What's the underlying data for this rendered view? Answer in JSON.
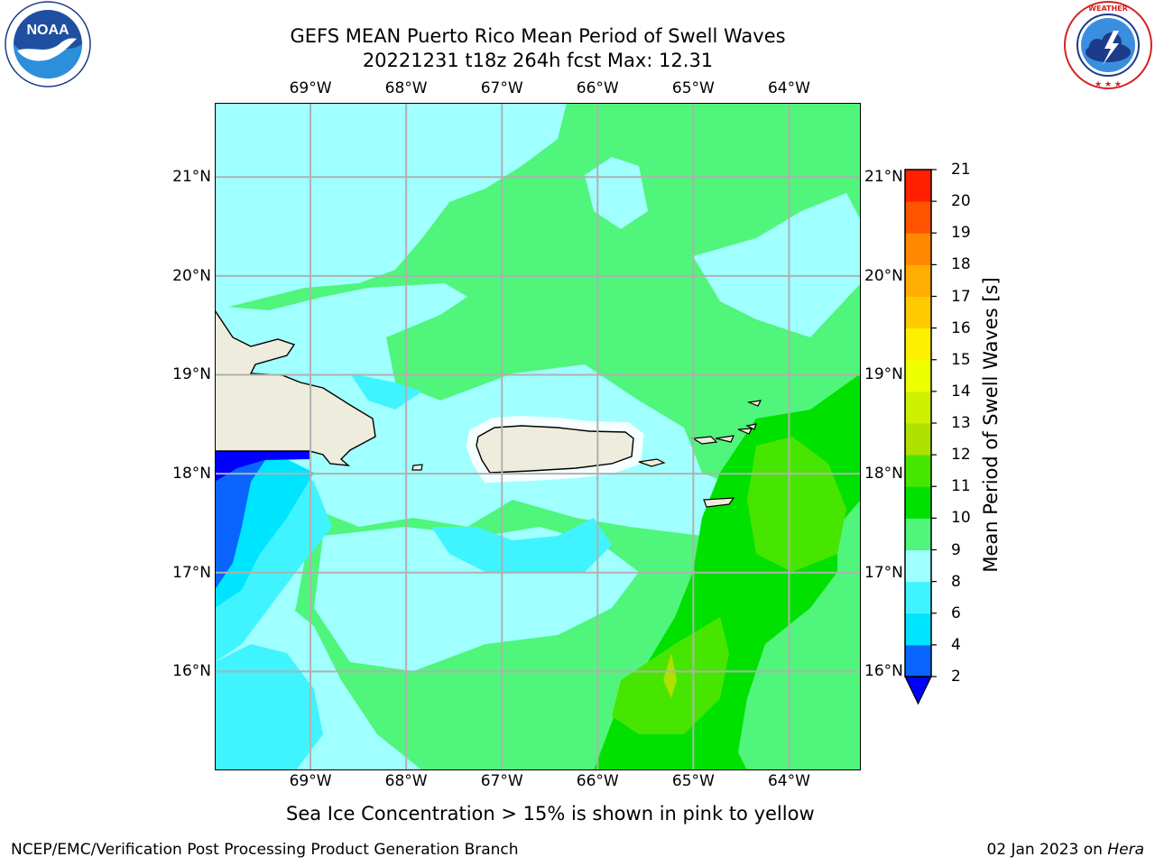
{
  "title": {
    "line1": "GEFS MEAN Puerto Rico Mean Period of Swell Waves",
    "line2": "20221231 t18z 264h fcst   Max: 12.31"
  },
  "logos": {
    "noaa": {
      "text": "NOAA",
      "ring_text": "NATIONAL OCEANIC AND ATMOSPHERIC ADMINISTRATION · U.S. DEPARTMENT OF COMMERCE"
    },
    "nws": {
      "ring_text": "NATIONAL WEATHER SERVICE"
    }
  },
  "map": {
    "lon_labels": [
      "69°W",
      "68°W",
      "67°W",
      "66°W",
      "65°W",
      "64°W"
    ],
    "lat_labels": [
      "21°N",
      "20°N",
      "19°N",
      "18°N",
      "17°N",
      "16°N"
    ],
    "lon_range": [
      -70.0,
      -63.25
    ],
    "lat_range": [
      15.0,
      21.75
    ],
    "land_color": "#eeecdc",
    "grid_color": "#b0b0b0"
  },
  "colorbar": {
    "title": "Mean Period of Swell Waves [s]",
    "levels": [
      "2",
      "4",
      "6",
      "8",
      "9",
      "10",
      "11",
      "12",
      "13",
      "14",
      "15",
      "16",
      "17",
      "18",
      "19",
      "20",
      "21"
    ],
    "colors": [
      "#0a65ff",
      "#00e5ff",
      "#40f4ff",
      "#a0ffff",
      "#50f57b",
      "#00e100",
      "#47e600",
      "#aee000",
      "#cdf000",
      "#eeff00",
      "#ffef00",
      "#ffcb00",
      "#ffad00",
      "#ff8800",
      "#ff5500",
      "#ff2000"
    ],
    "under_color": "#0000ff",
    "max_value": 12.31
  },
  "note": "Sea Ice Concentration > 15% is shown in pink to yellow",
  "footer": {
    "left": "NCEP/EMC/Verification Post Processing Product Generation Branch",
    "date": "02 Jan 2023 on ",
    "host": "Hera"
  }
}
